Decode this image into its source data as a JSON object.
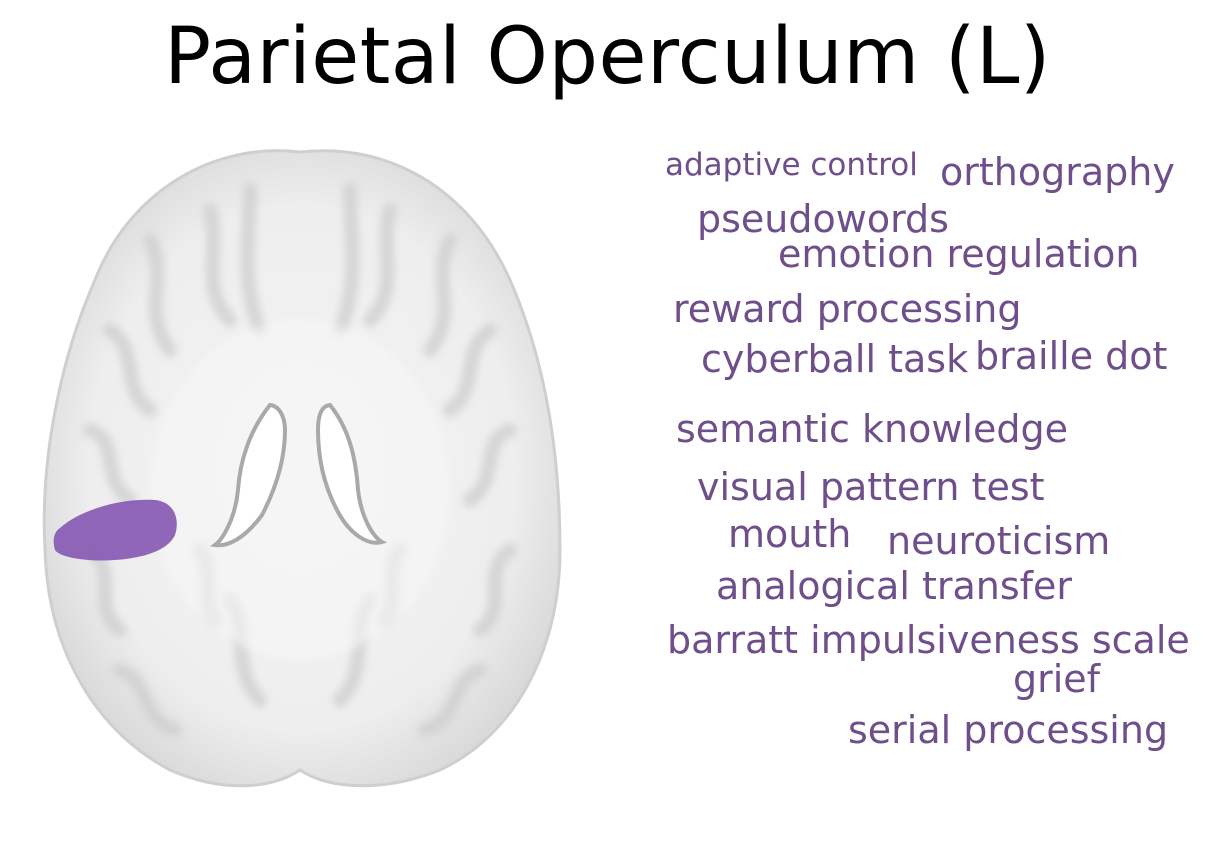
{
  "title": "Parietal Operculum (L)",
  "region": {
    "name": "Parietal Operculum (L)",
    "highlight_color": "#8a5fb4"
  },
  "word_color": "#6f4f8b",
  "terms": [
    "adaptive control",
    "orthography",
    "pseudowords",
    "emotion regulation",
    "reward processing",
    "cyberball task",
    "braille dot",
    "semantic knowledge",
    "visual pattern test",
    "mouth",
    "neuroticism",
    "analogical transfer",
    "barratt impulsiveness scale",
    "grief",
    "serial processing"
  ]
}
